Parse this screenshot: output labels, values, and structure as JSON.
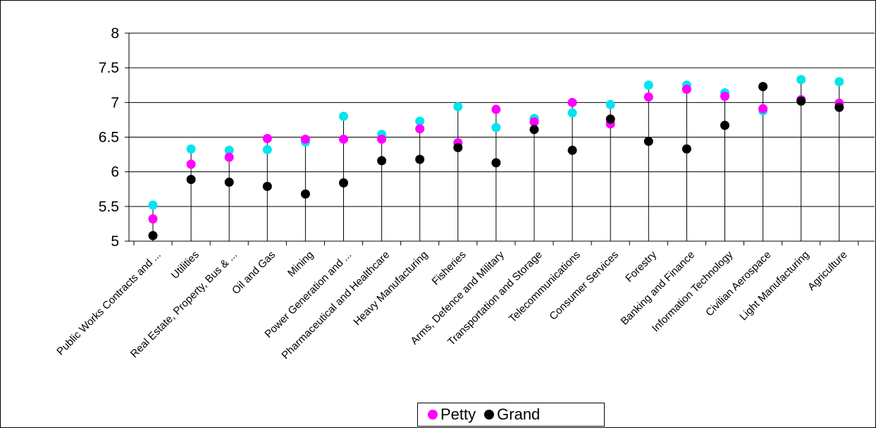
{
  "chart_data": {
    "type": "scatter",
    "title": "",
    "xlabel": "",
    "ylabel": "",
    "ylim": [
      5,
      8
    ],
    "yticks": [
      5,
      5.5,
      6,
      6.5,
      7,
      7.5,
      8
    ],
    "grid": "horizontal",
    "legend_position": "bottom",
    "categories": [
      "Public Works Contracts and ...",
      "Utilities",
      "Real Estate, Property, Bus & ...",
      "Oil and Gas",
      "Mining",
      "Power Generation and ...",
      "Pharmaceutical and Healthcare",
      "Heavy Manufacturing",
      "Fisheries",
      "Arms, Defence and Military",
      "Transportation and Storage",
      "Telecommunications",
      "Consumer Services",
      "Forestry",
      "Banking and Finance",
      "Information Technology",
      "Civilian Aerospace",
      "Light Manufacturing",
      "Agriculture"
    ],
    "series": [
      {
        "name": "",
        "color": "#00e5ee",
        "values": [
          5.52,
          6.33,
          6.31,
          6.32,
          6.43,
          6.8,
          6.54,
          6.73,
          6.94,
          6.64,
          6.77,
          6.85,
          6.97,
          7.25,
          7.25,
          7.14,
          6.88,
          7.33,
          7.3
        ]
      },
      {
        "name": "Petty",
        "color": "#ff00ff",
        "values": [
          5.32,
          6.11,
          6.21,
          6.48,
          6.47,
          6.47,
          6.47,
          6.62,
          6.42,
          6.9,
          6.72,
          7.0,
          6.69,
          7.08,
          7.19,
          7.09,
          6.91,
          7.04,
          6.99
        ]
      },
      {
        "name": "Grand",
        "color": "#000000",
        "values": [
          5.08,
          5.89,
          5.85,
          5.79,
          5.68,
          5.84,
          6.16,
          6.18,
          6.35,
          6.13,
          6.61,
          6.31,
          6.76,
          6.44,
          6.33,
          6.67,
          7.23,
          7.02,
          6.93
        ]
      }
    ]
  }
}
